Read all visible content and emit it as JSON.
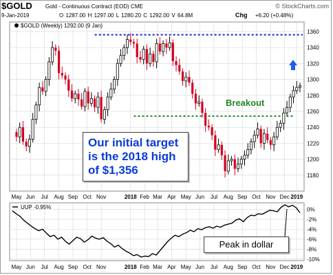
{
  "header": {
    "symbol": "$GOLD",
    "subtitle": "Gold - Continuous Contract (EOD)  CME",
    "brand": "© StockCharts.com",
    "date": "9-Jan-2019",
    "ohlc": "O 1287.00  H 1297.00  L 1280.20  C 1292.00  V 64.8M",
    "chg_label": "Chg",
    "chg_value": "+6.20 (+0.48%)",
    "bullet": "▲"
  },
  "annotations": {
    "target_lines": [
      "Our initial target",
      "is the 2018 high",
      "of $1,356"
    ],
    "breakout": "Breakout",
    "peak": "Peak in dollar"
  },
  "colors": {
    "up": "#000000",
    "down": "#d3001f",
    "resistance": "#1f2fd8",
    "breakout": "#1d8a1d",
    "arrow": "#1f5fe6",
    "grid": "#d4d4d4",
    "text_blue": "#0a3bd8"
  },
  "chart_data": [
    {
      "type": "candlestick",
      "title": "$GOLD (Weekly) 1292.00 (9 Jan)",
      "xlabel": "",
      "ylabel": "",
      "ylim": [
        1160,
        1372
      ],
      "yticks": [
        1180,
        1200,
        1220,
        1240,
        1260,
        1280,
        1300,
        1320,
        1340,
        1360
      ],
      "x_tick_labels": [
        "May",
        "Jun",
        "Jul",
        "Aug",
        "Sep",
        "Oct",
        "Nov",
        "2018",
        "Feb",
        "Mar",
        "Apr",
        "May",
        "Jun",
        "Jul",
        "Aug",
        "Sep",
        "Oct",
        "Nov",
        "Dec",
        "2019"
      ],
      "x_tick_weeks": [
        0,
        4.3,
        8.6,
        13,
        17.3,
        21.7,
        26,
        35,
        39.3,
        43.3,
        47.6,
        52,
        56.3,
        60.6,
        65,
        69.3,
        73.6,
        78,
        82.3,
        86
      ],
      "grid": true,
      "closes": [
        1228,
        1240,
        1222,
        1216,
        1225,
        1250,
        1268,
        1290,
        1285,
        1300,
        1322,
        1340,
        1336,
        1308,
        1305,
        1300,
        1286,
        1276,
        1282,
        1275,
        1266,
        1285,
        1270,
        1276,
        1265,
        1278,
        1250,
        1262,
        1278,
        1288,
        1300,
        1320,
        1330,
        1340,
        1350,
        1347,
        1345,
        1328,
        1325,
        1338,
        1320,
        1332,
        1322,
        1345,
        1335,
        1345,
        1340,
        1346,
        1323,
        1318,
        1310,
        1298,
        1303,
        1296,
        1282,
        1270,
        1272,
        1258,
        1242,
        1240,
        1230,
        1212,
        1218,
        1205,
        1185,
        1198,
        1200,
        1188,
        1194,
        1200,
        1205,
        1212,
        1222,
        1230,
        1238,
        1220,
        1232,
        1224,
        1218,
        1228,
        1240,
        1245,
        1258,
        1265,
        1278,
        1286,
        1290,
        1292
      ],
      "resistance": {
        "value": 1356,
        "from_week": 24
      },
      "breakout_level": {
        "value": 1254,
        "from_week": 36
      }
    },
    {
      "type": "line",
      "title": "UUP -0.95%",
      "xlabel": "",
      "ylabel": "",
      "ylim": [
        -10.3,
        1.3
      ],
      "yticks": [
        0,
        -2,
        -4,
        -6,
        -8,
        -10
      ],
      "ytick_labels": [
        "0%",
        "-2%",
        "-4%",
        "-6%",
        "-8%",
        "-10%"
      ],
      "x_tick_labels": [
        "May",
        "Jun",
        "Jul",
        "Aug",
        "Sep",
        "Oct",
        "Nov",
        "2018",
        "Feb",
        "Mar",
        "Apr",
        "May",
        "Jun",
        "Jul",
        "Aug",
        "Sep",
        "Oct",
        "Nov",
        "Dec",
        "2019"
      ],
      "values": [
        -0.3,
        -0.9,
        -1.4,
        -2.2,
        -2.8,
        -3.4,
        -3.9,
        -4.3,
        -4.0,
        -4.8,
        -5.5,
        -5.2,
        -6.0,
        -5.6,
        -6.4,
        -7.0,
        -6.3,
        -5.6,
        -5.9,
        -6.6,
        -6.1,
        -5.4,
        -5.8,
        -6.0,
        -5.7,
        -6.4,
        -6.9,
        -7.6,
        -7.2,
        -7.9,
        -8.4,
        -8.8,
        -9.3,
        -9.1,
        -9.6,
        -9.4,
        -9.5,
        -8.9,
        -9.2,
        -8.3,
        -7.4,
        -6.5,
        -5.8,
        -5.2,
        -5.5,
        -5.0,
        -4.7,
        -4.2,
        -4.5,
        -3.9,
        -4.1,
        -3.7,
        -3.5,
        -3.8,
        -3.4,
        -3.6,
        -3.2,
        -3.0,
        -2.8,
        -2.2,
        -1.9,
        -2.5,
        -1.7,
        -1.2,
        -1.3,
        -0.9,
        -1.0,
        -0.6,
        -0.2,
        -0.3,
        -0.5,
        0.4,
        0.9,
        0.5,
        0.8,
        0.3,
        -0.7
      ]
    }
  ]
}
